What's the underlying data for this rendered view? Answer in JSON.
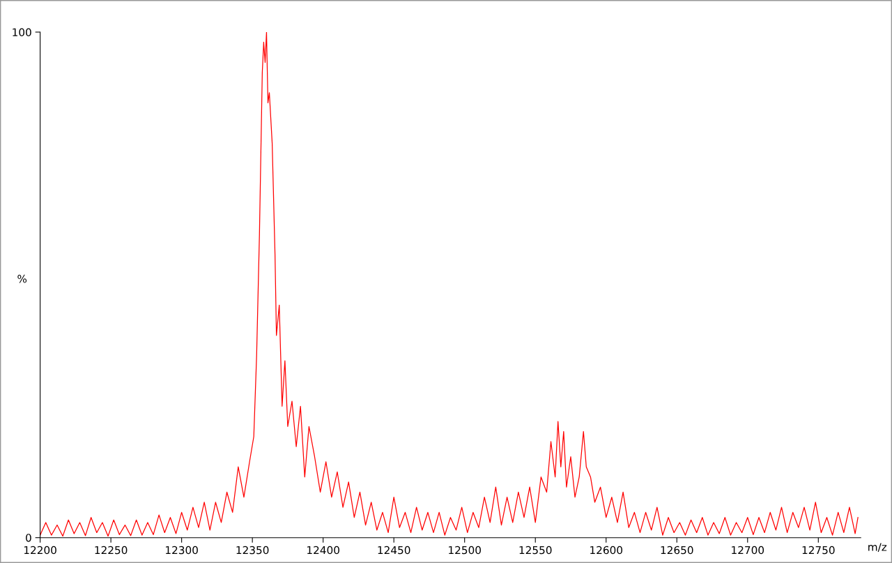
{
  "chart_data": {
    "type": "line",
    "xlabel": "m/z",
    "ylabel": "%",
    "xlim": [
      12200,
      12780
    ],
    "ylim": [
      0,
      100
    ],
    "xticks": [
      12200,
      12250,
      12300,
      12350,
      12400,
      12450,
      12500,
      12550,
      12600,
      12650,
      12700,
      12750
    ],
    "yticks": [
      0,
      100
    ],
    "grid": false,
    "legend": false,
    "marker": "none",
    "line_style": "solid",
    "series": [
      {
        "color": "#ff0000",
        "x": [
          12200,
          12204,
          12208,
          12212,
          12216,
          12220,
          12224,
          12228,
          12232,
          12236,
          12240,
          12244,
          12248,
          12252,
          12256,
          12260,
          12264,
          12268,
          12272,
          12276,
          12280,
          12284,
          12288,
          12292,
          12296,
          12300,
          12304,
          12308,
          12312,
          12316,
          12320,
          12324,
          12328,
          12332,
          12336,
          12340,
          12344,
          12348,
          12351,
          12353,
          12355,
          12357,
          12358,
          12359,
          12360,
          12361,
          12362,
          12364,
          12366,
          12367,
          12369,
          12371,
          12373,
          12375,
          12378,
          12381,
          12384,
          12387,
          12390,
          12394,
          12398,
          12402,
          12406,
          12410,
          12414,
          12418,
          12422,
          12426,
          12430,
          12434,
          12438,
          12442,
          12446,
          12450,
          12454,
          12458,
          12462,
          12466,
          12470,
          12474,
          12478,
          12482,
          12486,
          12490,
          12494,
          12498,
          12502,
          12506,
          12510,
          12514,
          12518,
          12522,
          12526,
          12530,
          12534,
          12538,
          12542,
          12546,
          12550,
          12554,
          12558,
          12561,
          12564,
          12566,
          12568,
          12570,
          12572,
          12575,
          12578,
          12581,
          12584,
          12586,
          12589,
          12592,
          12596,
          12600,
          12604,
          12608,
          12612,
          12616,
          12620,
          12624,
          12628,
          12632,
          12636,
          12640,
          12644,
          12648,
          12652,
          12656,
          12660,
          12664,
          12668,
          12672,
          12676,
          12680,
          12684,
          12688,
          12692,
          12696,
          12700,
          12704,
          12708,
          12712,
          12716,
          12720,
          12724,
          12728,
          12732,
          12736,
          12740,
          12744,
          12748,
          12752,
          12756,
          12760,
          12764,
          12768,
          12772,
          12776,
          12778
        ],
        "values": [
          0.5,
          3,
          0.5,
          2.5,
          0.3,
          3.5,
          0.8,
          3,
          0.4,
          4,
          1,
          3,
          0.3,
          3.5,
          0.6,
          2.5,
          0.4,
          3.5,
          0.5,
          3,
          0.6,
          4.5,
          1,
          4,
          0.8,
          5,
          1.5,
          6,
          2,
          7,
          1.5,
          7,
          3,
          9,
          5,
          14,
          8,
          15,
          20,
          36,
          60,
          92,
          98,
          94,
          100,
          86,
          88,
          78,
          56,
          40,
          46,
          26,
          35,
          22,
          27,
          18,
          26,
          12,
          22,
          16,
          9,
          15,
          8,
          13,
          6,
          11,
          4,
          9,
          2.5,
          7,
          1.5,
          5,
          1,
          8,
          2,
          5,
          1,
          6,
          1.5,
          5,
          1,
          5,
          0.5,
          4,
          1.5,
          6,
          1,
          5,
          2,
          8,
          3,
          10,
          2.5,
          8,
          3,
          9,
          4,
          10,
          3,
          12,
          9,
          19,
          12,
          23,
          14,
          21,
          10,
          16,
          8,
          12,
          21,
          14,
          12,
          7,
          10,
          4,
          8,
          3,
          9,
          2,
          5,
          1,
          5,
          1.5,
          6,
          0.5,
          4,
          1,
          3,
          0.5,
          3.5,
          1,
          4,
          0.5,
          3,
          0.8,
          4,
          0.5,
          3,
          1,
          4,
          0.6,
          4,
          1,
          5,
          1.5,
          6,
          1,
          5,
          2,
          6,
          1.5,
          7,
          1,
          4,
          0.5,
          5,
          1,
          6,
          0.8,
          4
        ]
      }
    ]
  }
}
